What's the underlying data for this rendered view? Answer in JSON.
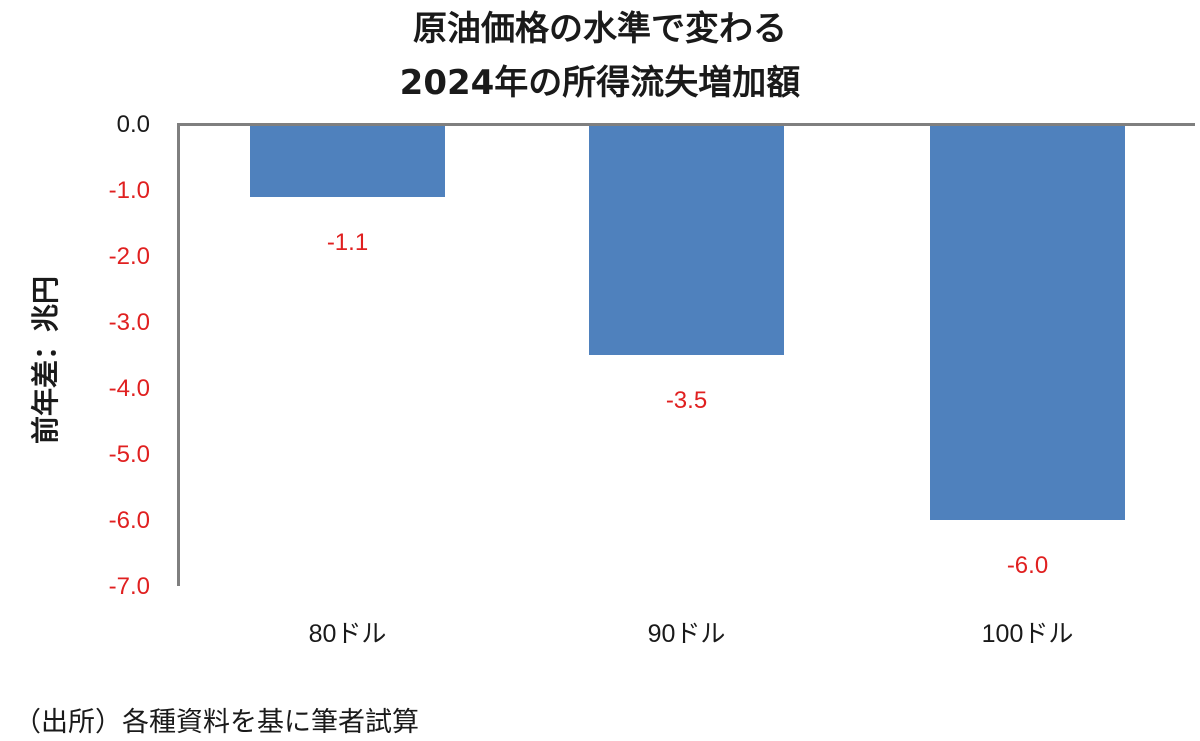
{
  "chart_data": {
    "type": "bar",
    "title": "原油価格の水準で変わる 2024年の所得流失増加額",
    "title_lines": [
      "原油価格の水準で変わる",
      "2024年の所得流失増加額"
    ],
    "categories": [
      "80ドル",
      "90ドル",
      "100ドル"
    ],
    "values": [
      -1.1,
      -3.5,
      -6.0
    ],
    "value_labels": [
      "-1.1",
      "-3.5",
      "-6.0"
    ],
    "xlabel": "",
    "ylabel": "前年差：兆円",
    "ylim": [
      -7.0,
      0.0
    ],
    "yticks": [
      "0.0",
      "-1.0",
      "-2.0",
      "-3.0",
      "-4.0",
      "-5.0",
      "-6.0",
      "-7.0"
    ],
    "grid": false,
    "legend": null,
    "bar_color": "#4F81BD",
    "label_color": "#E02020",
    "source": "（出所）各種資料を基に筆者試算"
  },
  "colors": {
    "bar": "#4F81BD",
    "negative_text": "#E02020",
    "zero_text": "#1a1a1a",
    "axis": "#7f7f7f"
  }
}
